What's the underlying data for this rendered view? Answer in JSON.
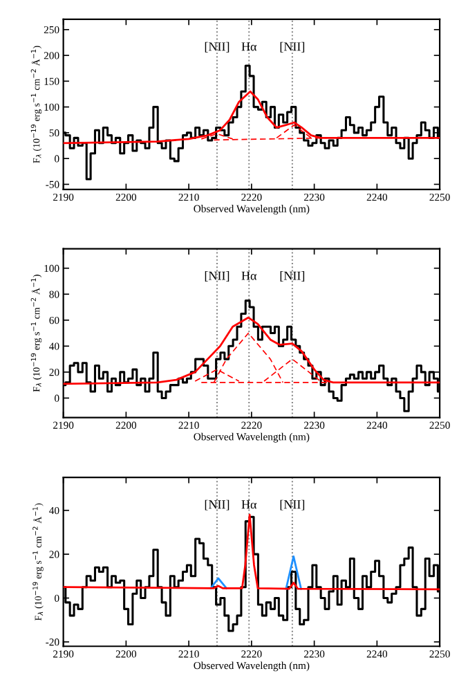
{
  "chart_data": [
    {
      "type": "step",
      "xlabel": "Observed Wavelength (nm)",
      "ylabel": "F$_{λ}$ (10$^{−19}$ erg s$^{−1}$ cm$^{−2}$ Å$^{−1}$)",
      "xlim": [
        2190,
        2250
      ],
      "xticks": [
        2190,
        2200,
        2210,
        2220,
        2230,
        2240,
        2250
      ],
      "ylim": [
        -60,
        270
      ],
      "yticks": [
        -50,
        0,
        50,
        100,
        150,
        200,
        250
      ],
      "grid": false,
      "x": [
        2190,
        2190.7,
        2191.4,
        2192,
        2192.7,
        2193.4,
        2194,
        2194.7,
        2195.4,
        2196,
        2196.7,
        2197.4,
        2198,
        2198.7,
        2199.4,
        2200,
        2200.7,
        2201.4,
        2202,
        2202.7,
        2203.4,
        2204,
        2204.7,
        2205.4,
        2206,
        2206.7,
        2207.4,
        2208,
        2208.7,
        2209.4,
        2210,
        2210.7,
        2211.4,
        2212,
        2212.7,
        2213.4,
        2214,
        2214.7,
        2215.4,
        2216,
        2216.7,
        2217.4,
        2218,
        2218.7,
        2219.4,
        2220,
        2220.7,
        2221.4,
        2222,
        2222.7,
        2223.4,
        2224,
        2224.7,
        2225.4,
        2226,
        2226.7,
        2227.4,
        2228,
        2228.7,
        2229.4,
        2230,
        2230.7,
        2231.4,
        2232,
        2232.7,
        2233.4,
        2234,
        2234.7,
        2235.4,
        2236,
        2236.7,
        2237.4,
        2238,
        2238.7,
        2239.4,
        2240,
        2240.7,
        2241.4,
        2242,
        2242.7,
        2243.4,
        2244,
        2244.7,
        2245.4,
        2246,
        2246.7,
        2247.4,
        2248,
        2248.7,
        2249.4,
        2250
      ],
      "series": [
        {
          "color": "#000000",
          "values": [
            50,
            45,
            20,
            40,
            25,
            30,
            -40,
            10,
            55,
            30,
            60,
            45,
            30,
            40,
            10,
            30,
            45,
            15,
            35,
            30,
            20,
            60,
            100,
            30,
            20,
            35,
            0,
            -5,
            20,
            45,
            50,
            40,
            60,
            45,
            55,
            35,
            40,
            60,
            55,
            45,
            70,
            80,
            100,
            130,
            180,
            160,
            100,
            95,
            110,
            80,
            100,
            60,
            85,
            70,
            90,
            100,
            60,
            50,
            35,
            25,
            30,
            45,
            30,
            20,
            35,
            25,
            40,
            55,
            80,
            65,
            50,
            60,
            45,
            55,
            70,
            100,
            120,
            70,
            45,
            60,
            30,
            20,
            40,
            0,
            30,
            45,
            70,
            55,
            40,
            60,
            40
          ]
        },
        {
          "type": "line",
          "color": "#ff0000",
          "line_style": "dashed",
          "x": [
            2212,
            2214.5,
            2217
          ],
          "values": [
            38,
            48,
            38
          ]
        },
        {
          "type": "line",
          "color": "#ff0000",
          "line_style": "dashed",
          "x": [
            2224,
            2226.8,
            2229.5
          ],
          "values": [
            40,
            65,
            40
          ]
        },
        {
          "type": "line",
          "color": "#ff0000",
          "line_style": "dashed",
          "x": [
            2214,
            2232
          ],
          "values": [
            36,
            40
          ]
        },
        {
          "type": "line",
          "color": "#ff0000",
          "line_style": "solid",
          "x": [
            2190,
            2205,
            2210,
            2213,
            2215,
            2216.5,
            2218,
            2219.8,
            2221,
            2222.5,
            2224,
            2225.5,
            2226.8,
            2228,
            2229.5,
            2231,
            2240,
            2250
          ],
          "values": [
            30,
            33,
            38,
            45,
            55,
            75,
            110,
            130,
            115,
            80,
            60,
            65,
            70,
            60,
            45,
            40,
            40,
            40
          ]
        }
      ],
      "ref_lines": [
        {
          "axis": "x",
          "value": 2214.5,
          "label": "[NII]",
          "color": "#808080",
          "line_style": "dotted"
        },
        {
          "axis": "x",
          "value": 2219.6,
          "label": "Hα",
          "color": "#808080",
          "line_style": "dotted"
        },
        {
          "axis": "x",
          "value": 2226.5,
          "label": "[NII]",
          "color": "#808080",
          "line_style": "dotted"
        }
      ]
    },
    {
      "type": "step",
      "xlabel": "Observed Wavelength (nm)",
      "ylabel": "F$_{λ}$ (10$^{−19}$ erg s$^{−1}$ cm$^{−2}$ Å$^{−1}$)",
      "xlim": [
        2190,
        2250
      ],
      "xticks": [
        2190,
        2200,
        2210,
        2220,
        2230,
        2240,
        2250
      ],
      "ylim": [
        -15,
        115
      ],
      "yticks": [
        0,
        20,
        40,
        60,
        80,
        100
      ],
      "grid": false,
      "x": [
        2190,
        2190.7,
        2191.4,
        2192,
        2192.7,
        2193.4,
        2194,
        2194.7,
        2195.4,
        2196,
        2196.7,
        2197.4,
        2198,
        2198.7,
        2199.4,
        2200,
        2200.7,
        2201.4,
        2202,
        2202.7,
        2203.4,
        2204,
        2204.7,
        2205.4,
        2206,
        2206.7,
        2207.4,
        2208,
        2208.7,
        2209.4,
        2210,
        2210.7,
        2211.4,
        2212,
        2212.7,
        2213.4,
        2214,
        2214.7,
        2215.4,
        2216,
        2216.7,
        2217.4,
        2218,
        2218.7,
        2219.4,
        2220,
        2220.7,
        2221.4,
        2222,
        2222.7,
        2223.4,
        2224,
        2224.7,
        2225.4,
        2226,
        2226.7,
        2227.4,
        2228,
        2228.7,
        2229.4,
        2230,
        2230.7,
        2231.4,
        2232,
        2232.7,
        2233.4,
        2234,
        2234.7,
        2235.4,
        2236,
        2236.7,
        2237.4,
        2238,
        2238.7,
        2239.4,
        2240,
        2240.7,
        2241.4,
        2242,
        2242.7,
        2243.4,
        2244,
        2244.7,
        2245.4,
        2246,
        2246.7,
        2247.4,
        2248,
        2248.7,
        2249.4,
        2250
      ],
      "series": [
        {
          "color": "#000000",
          "values": [
            10,
            12,
            25,
            27,
            20,
            27,
            12,
            5,
            25,
            15,
            20,
            5,
            15,
            10,
            20,
            12,
            15,
            22,
            10,
            15,
            5,
            15,
            35,
            5,
            0,
            5,
            10,
            10,
            15,
            12,
            15,
            20,
            30,
            30,
            25,
            15,
            15,
            30,
            35,
            30,
            40,
            45,
            55,
            65,
            75,
            70,
            55,
            45,
            55,
            55,
            50,
            55,
            40,
            45,
            55,
            45,
            40,
            35,
            30,
            25,
            15,
            20,
            10,
            15,
            5,
            0,
            -2,
            10,
            15,
            18,
            15,
            20,
            15,
            20,
            15,
            20,
            25,
            15,
            10,
            15,
            5,
            0,
            -10,
            5,
            15,
            25,
            20,
            10,
            20,
            15,
            5
          ]
        },
        {
          "type": "line",
          "color": "#ff0000",
          "line_style": "dashed",
          "x": [
            2211,
            2214.5,
            2218
          ],
          "values": [
            13,
            22,
            13
          ]
        },
        {
          "type": "line",
          "color": "#ff0000",
          "line_style": "dashed",
          "x": [
            2214,
            2216,
            2219.5,
            2223,
            2225
          ],
          "values": [
            12,
            30,
            50,
            30,
            12
          ]
        },
        {
          "type": "line",
          "color": "#ff0000",
          "line_style": "dashed",
          "x": [
            2222,
            2226.5,
            2231
          ],
          "values": [
            13,
            30,
            13
          ]
        },
        {
          "type": "line",
          "color": "#ff0000",
          "line_style": "dashed",
          "x": [
            2212,
            2232
          ],
          "values": [
            12,
            12
          ]
        },
        {
          "type": "line",
          "color": "#ff0000",
          "line_style": "solid",
          "x": [
            2190,
            2205,
            2208,
            2211,
            2213,
            2215,
            2217,
            2219.5,
            2221,
            2223,
            2224.5,
            2226.5,
            2228,
            2230,
            2231.5,
            2233,
            2250
          ],
          "values": [
            11,
            12,
            14,
            20,
            30,
            40,
            55,
            62,
            57,
            45,
            41,
            42,
            36,
            22,
            14,
            12,
            12
          ]
        }
      ],
      "ref_lines": [
        {
          "axis": "x",
          "value": 2214.5,
          "label": "[NII]",
          "color": "#808080",
          "line_style": "dotted"
        },
        {
          "axis": "x",
          "value": 2219.6,
          "label": "Hα",
          "color": "#808080",
          "line_style": "dotted"
        },
        {
          "axis": "x",
          "value": 2226.5,
          "label": "[NII]",
          "color": "#808080",
          "line_style": "dotted"
        }
      ]
    },
    {
      "type": "step",
      "xlabel": "Observed Wavelength (nm)",
      "ylabel": "F$_{λ}$ (10$^{−19}$ erg s$^{−1}$ cm$^{−2}$ Å$^{−1}$)",
      "xlim": [
        2190,
        2250
      ],
      "xticks": [
        2190,
        2200,
        2210,
        2220,
        2230,
        2240,
        2250
      ],
      "ylim": [
        -22,
        55
      ],
      "yticks": [
        -20,
        0,
        20,
        40
      ],
      "grid": false,
      "x": [
        2190,
        2190.7,
        2191.4,
        2192,
        2192.7,
        2193.4,
        2194,
        2194.7,
        2195.4,
        2196,
        2196.7,
        2197.4,
        2198,
        2198.7,
        2199.4,
        2200,
        2200.7,
        2201.4,
        2202,
        2202.7,
        2203.4,
        2204,
        2204.7,
        2205.4,
        2206,
        2206.7,
        2207.4,
        2208,
        2208.7,
        2209.4,
        2210,
        2210.7,
        2211.4,
        2212,
        2212.7,
        2213.4,
        2214,
        2214.7,
        2215.4,
        2216,
        2216.7,
        2217.4,
        2218,
        2218.7,
        2219.4,
        2220,
        2220.7,
        2221.4,
        2222,
        2222.7,
        2223.4,
        2224,
        2224.7,
        2225.4,
        2226,
        2226.7,
        2227.4,
        2228,
        2228.7,
        2229.4,
        2230,
        2230.7,
        2231.4,
        2232,
        2232.7,
        2233.4,
        2234,
        2234.7,
        2235.4,
        2236,
        2236.7,
        2237.4,
        2238,
        2238.7,
        2239.4,
        2240,
        2240.7,
        2241.4,
        2242,
        2242.7,
        2243.4,
        2244,
        2244.7,
        2245.4,
        2246,
        2246.7,
        2247.4,
        2248,
        2248.7,
        2249.4,
        2250
      ],
      "series": [
        {
          "color": "#000000",
          "values": [
            5,
            -2,
            -8,
            -3,
            -5,
            5,
            10,
            8,
            14,
            12,
            14,
            5,
            10,
            7,
            8,
            -5,
            -12,
            2,
            8,
            0,
            5,
            10,
            22,
            5,
            -2,
            -8,
            10,
            5,
            8,
            12,
            15,
            10,
            27,
            25,
            18,
            15,
            5,
            -3,
            0,
            -8,
            -15,
            -12,
            -8,
            5,
            35,
            37,
            20,
            -3,
            -8,
            -2,
            -5,
            0,
            -8,
            -10,
            5,
            12,
            -5,
            -12,
            -10,
            5,
            15,
            5,
            0,
            -5,
            3,
            10,
            -3,
            8,
            5,
            18,
            0,
            -5,
            10,
            5,
            12,
            17,
            10,
            0,
            -2,
            2,
            5,
            15,
            18,
            23,
            5,
            -8,
            -5,
            18,
            10,
            15,
            3
          ]
        },
        {
          "type": "line",
          "color": "#1e90ff",
          "line_style": "solid",
          "x": [
            2213.5,
            2214.7,
            2216
          ],
          "values": [
            4.5,
            9,
            4.5
          ]
        },
        {
          "type": "line",
          "color": "#1e90ff",
          "line_style": "solid",
          "x": [
            2225.5,
            2226.7,
            2227.9
          ],
          "values": [
            4.2,
            19,
            4.2
          ]
        },
        {
          "type": "line",
          "color": "#ff0000",
          "line_style": "solid",
          "x": [
            2190,
            2214,
            2214.7,
            2215.4,
            2218.5,
            2219,
            2219.7,
            2220.4,
            2221,
            2226,
            2226.7,
            2227.4,
            2250
          ],
          "values": [
            5,
            4.5,
            5.5,
            4.5,
            4.5,
            15,
            38,
            15,
            4.5,
            4.2,
            7,
            4.2,
            4
          ]
        }
      ],
      "ref_lines": [
        {
          "axis": "x",
          "value": 2214.5,
          "label": "[NII]",
          "color": "#808080",
          "line_style": "dotted"
        },
        {
          "axis": "x",
          "value": 2219.6,
          "label": "Hα",
          "color": "#808080",
          "line_style": "dotted"
        },
        {
          "axis": "x",
          "value": 2226.5,
          "label": "[NII]",
          "color": "#808080",
          "line_style": "dotted"
        }
      ]
    }
  ]
}
